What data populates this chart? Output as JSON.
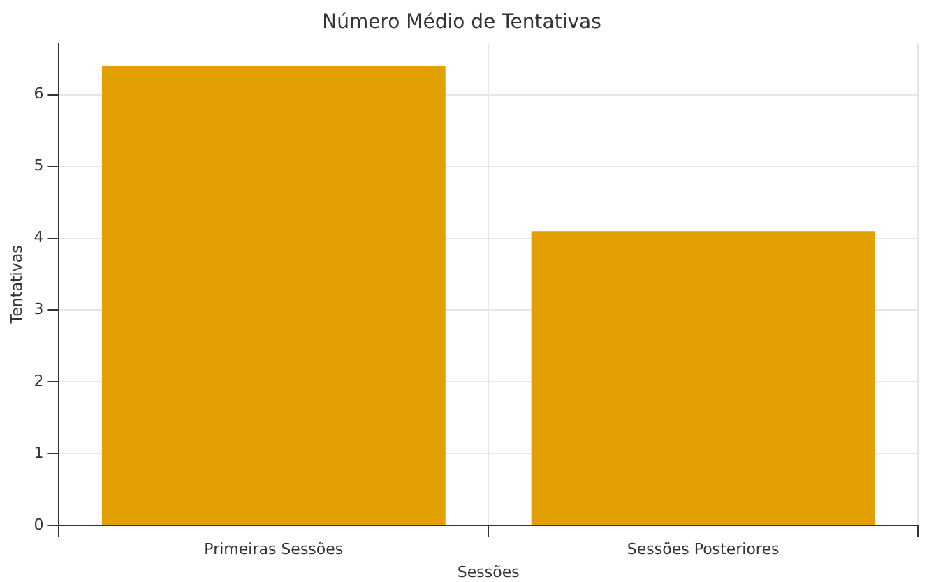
{
  "chart_data": {
    "type": "bar",
    "title": "Número Médio de Tentativas",
    "xlabel": "Sessões",
    "ylabel": "Tentativas",
    "categories": [
      "Primeiras Sessões",
      "Sessões Posteriores"
    ],
    "values": [
      6.4,
      4.1
    ],
    "color": "#e3a002",
    "ylim": [
      0,
      6.72
    ],
    "yticks": [
      0,
      1,
      2,
      3,
      4,
      5,
      6
    ],
    "grid": true
  }
}
